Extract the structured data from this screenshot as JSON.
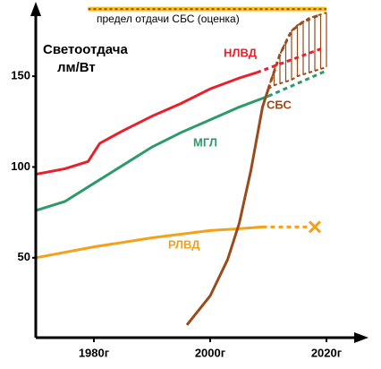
{
  "chart_data": {
    "type": "line",
    "ylabel": [
      "Светоотдача",
      "лм/Вт"
    ],
    "xlim": [
      1970,
      2027
    ],
    "ylim": [
      6,
      190
    ],
    "xticks": [
      {
        "value": 1980,
        "label": "1980г"
      },
      {
        "value": 2000,
        "label": "2000г"
      },
      {
        "value": 2020,
        "label": "2020г"
      }
    ],
    "yticks": [
      50,
      100,
      150
    ],
    "series": [
      {
        "name": "НЛВД",
        "color": "#e8202a",
        "x": [
          1970,
          1975,
          1979,
          1981,
          1985,
          1990,
          1995,
          2000,
          2005,
          2008
        ],
        "values": [
          96,
          99,
          103,
          113,
          120,
          128,
          135,
          143,
          149,
          152
        ],
        "forecast_x": [
          2008,
          2019
        ],
        "forecast_values": [
          152,
          165
        ]
      },
      {
        "name": "МГЛ",
        "color": "#2e9a6a",
        "x": [
          1970,
          1975,
          1980,
          1985,
          1990,
          1995,
          2000,
          2005,
          2010
        ],
        "values": [
          76,
          81,
          91,
          101,
          111,
          119,
          126,
          133,
          139
        ],
        "forecast_x": [
          2010,
          2020
        ],
        "forecast_values": [
          139,
          153
        ]
      },
      {
        "name": "РЛВД",
        "color": "#f5a01a",
        "x": [
          1970,
          1980,
          1990,
          2000,
          2005,
          2009
        ],
        "values": [
          50,
          56,
          61,
          65,
          66,
          67
        ],
        "forecast_x": [
          2009,
          2017
        ],
        "forecast_values": [
          67,
          67
        ],
        "target_x": 2018,
        "target": 67
      },
      {
        "name": "СБС",
        "color": "#9b4a1c",
        "x": [
          1996,
          2000,
          2003,
          2005,
          2007,
          2009,
          2010
        ],
        "values": [
          13,
          29,
          49,
          69,
          98,
          133,
          143
        ],
        "forecast_x": [
          2010,
          2012,
          2014,
          2016,
          2019
        ],
        "forecast_values": [
          143,
          162,
          175,
          180,
          184
        ]
      }
    ],
    "band": {
      "color": "#9b4a1c",
      "x": [
        2010,
        2011,
        2012,
        2013,
        2014,
        2015,
        2016,
        2017,
        2018,
        2019,
        2020
      ],
      "upper": [
        143,
        153,
        162,
        169,
        175,
        178,
        180,
        182,
        183,
        184,
        185
      ],
      "lower": [
        143,
        145,
        146,
        147,
        148,
        150,
        151,
        152,
        153,
        154,
        155
      ]
    },
    "limit": {
      "label": "предел отдачи СБС  (оценка)",
      "value": 187,
      "x": [
        1979,
        2020
      ],
      "color": "#f5c21a"
    }
  }
}
